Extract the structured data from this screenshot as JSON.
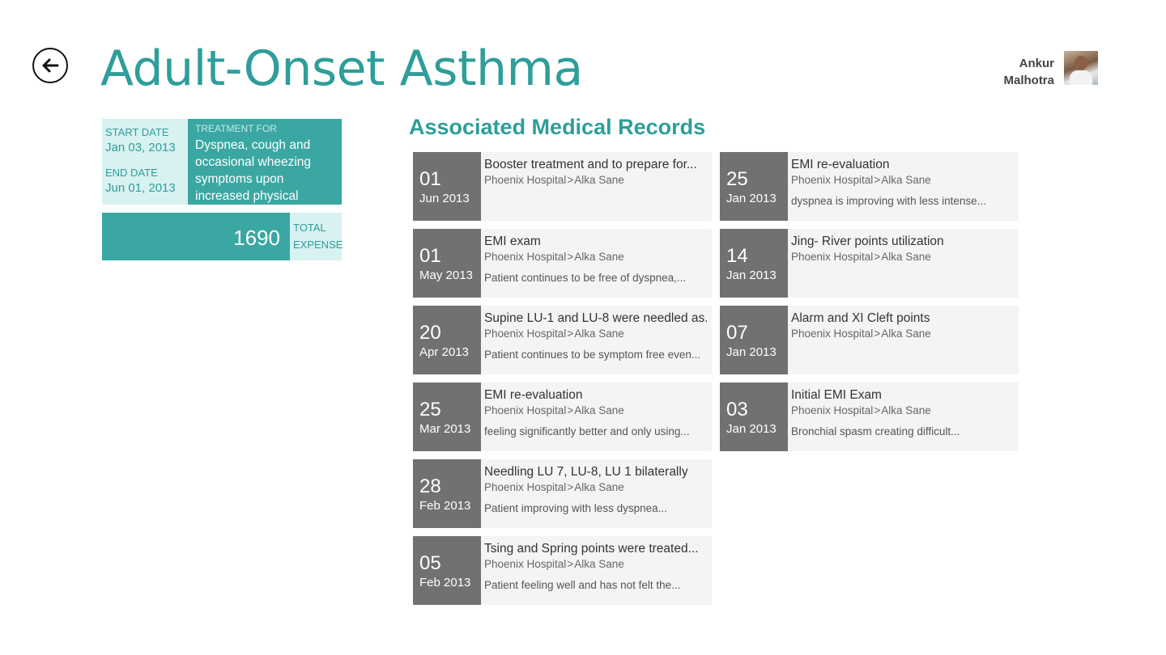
{
  "header": {
    "title": "Adult-Onset Asthma",
    "user_first": "Ankur",
    "user_last": "Malhotra"
  },
  "summary": {
    "start_label": "START DATE",
    "start_value": "Jan 03, 2013",
    "end_label": "END DATE",
    "end_value": "Jun 01, 2013",
    "treatment_label": "TREATMENT FOR",
    "treatment_text": "Dyspnea, cough and occasional wheezing symptoms upon increased physical",
    "expense_value": "1690",
    "expense_label_1": "TOTAL",
    "expense_label_2": "EXPENSE"
  },
  "records_title": "Associated Medical Records",
  "records": [
    {
      "day": "01",
      "month": "Jun 2013",
      "title": "Booster treatment and to prepare for...",
      "hospital": "Phoenix Hospital",
      "sep": ">",
      "doctor": "Alka Sane",
      "note": ""
    },
    {
      "day": "25",
      "month": "Jan 2013",
      "title": " EMI re-evaluation",
      "hospital": "Phoenix Hospital",
      "sep": ">",
      "doctor": "Alka Sane",
      "note": " dyspnea is improving with less intense..."
    },
    {
      "day": "01",
      "month": "May 2013",
      "title": "EMI exam",
      "hospital": "Phoenix Hospital",
      "sep": ">",
      "doctor": "Alka Sane",
      "note": " Patient continues to be free of dyspnea,..."
    },
    {
      "day": "14",
      "month": "Jan 2013",
      "title": "Jing- River points utilization",
      "hospital": "Phoenix Hospital",
      "sep": ">",
      "doctor": "Alka Sane",
      "note": ""
    },
    {
      "day": "20",
      "month": "Apr 2013",
      "title": "Supine LU-1 and LU-8 were needled as...",
      "hospital": "Phoenix Hospital",
      "sep": ">",
      "doctor": "Alka Sane",
      "note": "Patient continues to be symptom free even..."
    },
    {
      "day": "07",
      "month": "Jan 2013",
      "title": "Alarm and XI Cleft points",
      "hospital": "Phoenix Hospital",
      "sep": ">",
      "doctor": "Alka Sane",
      "note": ""
    },
    {
      "day": "25",
      "month": "Mar 2013",
      "title": "EMI re-evaluation",
      "hospital": "Phoenix Hospital",
      "sep": ">",
      "doctor": "Alka Sane",
      "note": " feeling significantly better and only using..."
    },
    {
      "day": "03",
      "month": "Jan 2013",
      "title": "Initial EMI Exam",
      "hospital": "Phoenix Hospital",
      "sep": ">",
      "doctor": "Alka Sane",
      "note": "Bronchial spasm creating difficult..."
    },
    {
      "day": "28",
      "month": "Feb 2013",
      "title": "Needling LU 7, LU-8, LU 1 bilaterally",
      "hospital": "Phoenix Hospital",
      "sep": ">",
      "doctor": "Alka Sane",
      "note": " Patient improving with less dyspnea..."
    },
    {
      "day": "05",
      "month": "Feb 2013",
      "title": "Tsing and Spring points were treated...",
      "hospital": "Phoenix Hospital",
      "sep": ">",
      "doctor": "Alka Sane",
      "note": "Patient feeling well and has not felt the..."
    }
  ]
}
